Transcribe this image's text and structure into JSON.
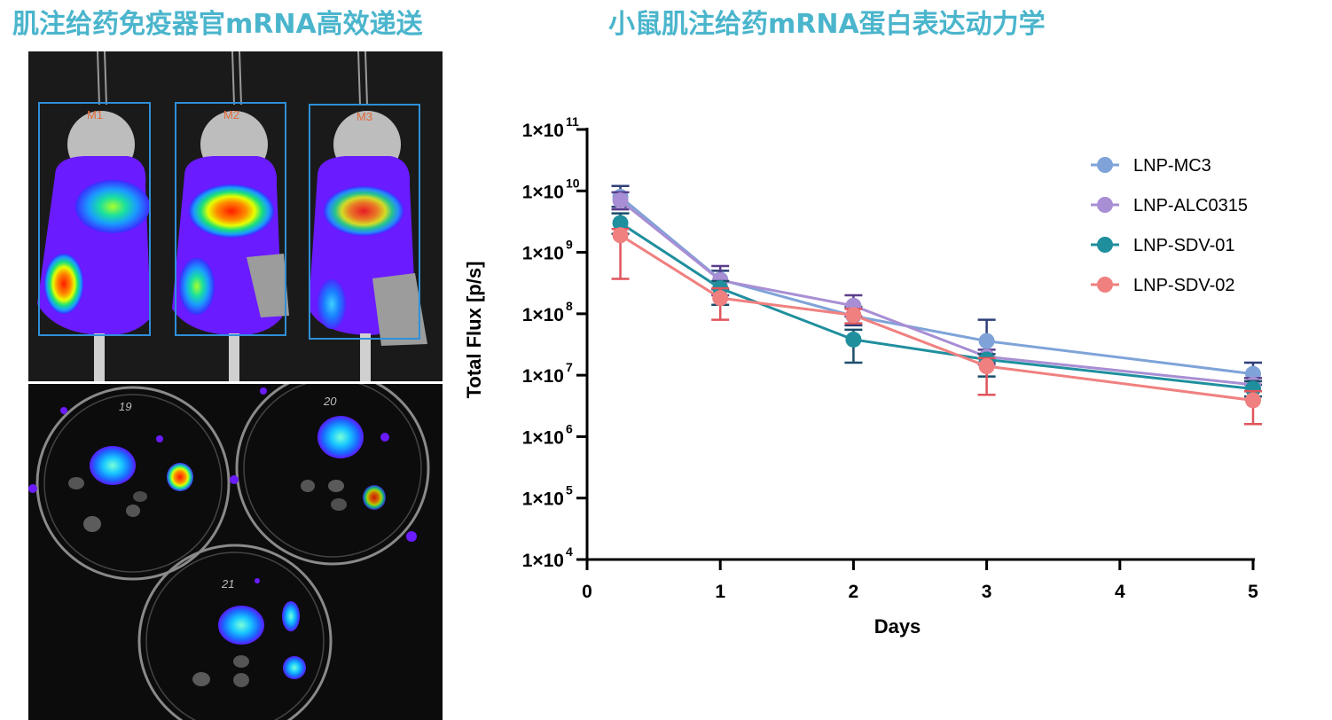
{
  "titles": {
    "left": "肌注给药免疫器官mRNA高效递送",
    "right": "小鼠肌注给药mRNA蛋白表达动力学"
  },
  "imaging": {
    "mice_roi_labels": [
      "M1",
      "M2",
      "M3"
    ],
    "dish_labels": [
      "19",
      "20",
      "21"
    ]
  },
  "chart_data": {
    "type": "line",
    "xlabel": "Days",
    "ylabel": "Total Flux [p/s]",
    "xlim": [
      0,
      5
    ],
    "x_ticks": [
      "0",
      "1",
      "2",
      "3",
      "4",
      "5"
    ],
    "y_scale": "log",
    "ylim": [
      10000,
      100000000000
    ],
    "y_ticks": [
      "1×10",
      "1×10",
      "1×10",
      "1×10",
      "1×10",
      "1×10",
      "1×10",
      "1×10"
    ],
    "y_tick_exponents": [
      "4",
      "5",
      "6",
      "7",
      "8",
      "9",
      "10",
      "11"
    ],
    "legend_position": "top-right",
    "grid": false,
    "x": [
      0.25,
      1,
      2,
      3,
      5
    ],
    "series": [
      {
        "name": "LNP-MC3",
        "color": "#7fa3d8",
        "error_color": "#2f3f7a",
        "values": [
          8000000000,
          360000000,
          92000000,
          36000000,
          10500000
        ],
        "err_high": [
          12000000000,
          500000000,
          130000000,
          80000000,
          16000000
        ],
        "err_low": [
          5500000000,
          250000000,
          65000000,
          16000000,
          7000000
        ]
      },
      {
        "name": "LNP-ALC0315",
        "color": "#a88ed4",
        "error_color": "#5a3d8c",
        "values": [
          7000000000,
          350000000,
          135000000,
          20000000,
          7000000
        ],
        "err_high": [
          9500000000,
          600000000,
          200000000,
          26000000,
          9000000
        ],
        "err_low": [
          5000000000,
          200000000,
          90000000,
          15000000,
          5500000
        ]
      },
      {
        "name": "LNP-SDV-01",
        "color": "#1f8f9e",
        "error_color": "#1a4e6a",
        "values": [
          3000000000,
          260000000,
          38000000,
          18000000,
          6000000
        ],
        "err_high": [
          4300000000,
          340000000,
          55000000,
          22000000,
          8000000
        ],
        "err_low": [
          2000000000,
          140000000,
          16000000,
          9500000,
          4500000
        ]
      },
      {
        "name": "LNP-SDV-02",
        "color": "#f08080",
        "error_color": "#e0545c",
        "values": [
          1900000000,
          180000000,
          95000000,
          14000000,
          3900000
        ],
        "err_high": [
          2400000000,
          260000000,
          120000000,
          19000000,
          5500000
        ],
        "err_low": [
          370000000,
          80000000,
          70000000,
          4800000,
          1600000
        ]
      }
    ]
  }
}
